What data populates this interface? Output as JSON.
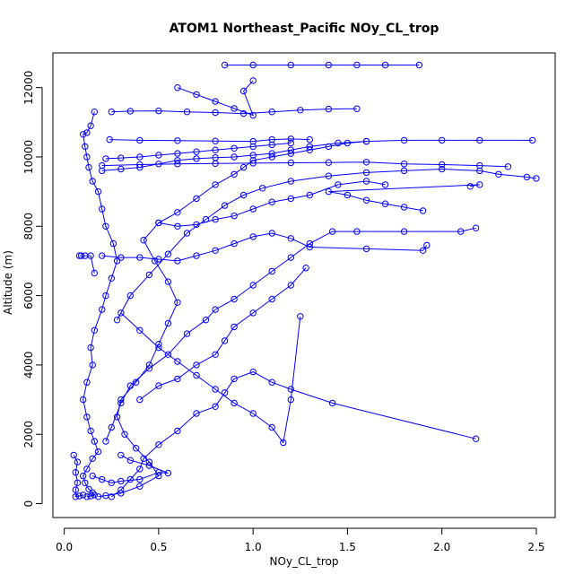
{
  "chart_data": {
    "type": "scatter",
    "title": "ATOM1 Northeast_Pacific NOy_CL_trop",
    "xlabel": "NOy_CL_trop",
    "ylabel": "Altitude (m)",
    "xlim": [
      -0.06,
      2.6
    ],
    "ylim": [
      -400,
      13000
    ],
    "xticks": [
      0.0,
      0.5,
      1.0,
      1.5,
      2.0,
      2.5
    ],
    "xtick_labels": [
      "0.0",
      "0.5",
      "1.0",
      "1.5",
      "2.0",
      "2.5"
    ],
    "yticks": [
      0,
      2000,
      4000,
      6000,
      8000,
      10000,
      12000
    ],
    "ytick_labels": [
      "0",
      "2000",
      "4000",
      "6000",
      "8000",
      "10000",
      "12000"
    ],
    "grid": false,
    "legend": "none",
    "marker": "open-circle",
    "connect_points": true,
    "color": "#0000ff",
    "series": [
      {
        "values_xy": [
          [
            0.12,
            200
          ],
          [
            0.14,
            220
          ],
          [
            0.16,
            250
          ],
          [
            0.15,
            320
          ],
          [
            0.13,
            420
          ],
          [
            0.11,
            600
          ],
          [
            0.1,
            800
          ],
          [
            0.12,
            1000
          ],
          [
            0.15,
            1300
          ],
          [
            0.18,
            1500
          ],
          [
            0.16,
            1800
          ],
          [
            0.14,
            2100
          ],
          [
            0.12,
            2500
          ],
          [
            0.1,
            3000
          ],
          [
            0.12,
            3500
          ],
          [
            0.15,
            4000
          ],
          [
            0.14,
            4500
          ],
          [
            0.16,
            5000
          ],
          [
            0.2,
            5600
          ],
          [
            0.22,
            6000
          ],
          [
            0.25,
            6500
          ],
          [
            0.28,
            7000
          ],
          [
            0.26,
            7500
          ],
          [
            0.22,
            8000
          ],
          [
            0.2,
            8500
          ],
          [
            0.18,
            9000
          ],
          [
            0.15,
            9300
          ],
          [
            0.13,
            9700
          ],
          [
            0.12,
            10000
          ],
          [
            0.11,
            10300
          ],
          [
            0.1,
            10650
          ],
          [
            0.12,
            10700
          ],
          [
            0.14,
            10900
          ],
          [
            0.16,
            11300
          ]
        ]
      },
      {
        "values_xy": [
          [
            0.18,
            200
          ],
          [
            0.22,
            230
          ],
          [
            0.3,
            300
          ],
          [
            0.4,
            500
          ],
          [
            0.5,
            800
          ],
          [
            0.45,
            1200
          ],
          [
            0.38,
            1600
          ],
          [
            0.32,
            2000
          ],
          [
            0.28,
            2500
          ],
          [
            0.3,
            3000
          ],
          [
            0.38,
            3500
          ],
          [
            0.45,
            4000
          ],
          [
            0.5,
            4600
          ],
          [
            0.55,
            5200
          ],
          [
            0.6,
            5800
          ],
          [
            0.55,
            6400
          ],
          [
            0.48,
            7000
          ],
          [
            0.42,
            7600
          ],
          [
            0.5,
            8100
          ],
          [
            0.6,
            8400
          ],
          [
            0.7,
            8800
          ],
          [
            0.8,
            9200
          ],
          [
            0.9,
            9500
          ],
          [
            0.95,
            9700
          ],
          [
            1.0,
            9900
          ],
          [
            1.1,
            10000
          ],
          [
            1.2,
            10100
          ],
          [
            1.3,
            10200
          ],
          [
            1.4,
            10300
          ],
          [
            1.5,
            10400
          ],
          [
            1.6,
            10450
          ],
          [
            1.8,
            10480
          ],
          [
            2.0,
            10480
          ],
          [
            2.2,
            10480
          ],
          [
            2.48,
            10480
          ]
        ]
      },
      {
        "values_xy": [
          [
            0.25,
            200
          ],
          [
            0.3,
            400
          ],
          [
            0.35,
            700
          ],
          [
            0.4,
            1000
          ],
          [
            0.42,
            1300
          ],
          [
            0.5,
            1700
          ],
          [
            0.6,
            2100
          ],
          [
            0.7,
            2600
          ],
          [
            0.8,
            2800
          ],
          [
            0.85,
            3200
          ],
          [
            0.9,
            3600
          ],
          [
            1.0,
            3800
          ],
          [
            1.1,
            3500
          ],
          [
            1.2,
            3300
          ],
          [
            1.42,
            2900
          ],
          [
            2.18,
            1870
          ]
        ]
      },
      {
        "values_xy": [
          [
            0.22,
            1800
          ],
          [
            0.25,
            2200
          ],
          [
            0.3,
            2900
          ],
          [
            0.35,
            3400
          ],
          [
            0.45,
            3900
          ],
          [
            0.55,
            4300
          ],
          [
            0.65,
            4900
          ],
          [
            0.75,
            5300
          ],
          [
            0.8,
            5600
          ],
          [
            0.9,
            5900
          ],
          [
            1.0,
            6300
          ],
          [
            1.1,
            6700
          ],
          [
            1.2,
            7100
          ],
          [
            1.3,
            7500
          ],
          [
            1.42,
            7850
          ],
          [
            1.55,
            7850
          ],
          [
            1.8,
            7850
          ],
          [
            2.1,
            7850
          ],
          [
            2.18,
            7950
          ]
        ]
      },
      {
        "values_xy": [
          [
            0.28,
            5300
          ],
          [
            0.35,
            6000
          ],
          [
            0.45,
            6600
          ],
          [
            0.55,
            7200
          ],
          [
            0.65,
            7800
          ],
          [
            0.75,
            8200
          ],
          [
            0.85,
            8600
          ],
          [
            0.95,
            8900
          ],
          [
            1.05,
            9100
          ],
          [
            1.2,
            9300
          ],
          [
            1.4,
            9450
          ],
          [
            1.6,
            9550
          ],
          [
            1.8,
            9600
          ],
          [
            2.0,
            9650
          ],
          [
            2.2,
            9600
          ],
          [
            2.3,
            9500
          ],
          [
            2.45,
            9420
          ],
          [
            2.5,
            9380
          ]
        ]
      },
      {
        "values_xy": [
          [
            0.2,
            7150
          ],
          [
            0.3,
            7100
          ],
          [
            0.4,
            7100
          ],
          [
            0.5,
            7050
          ],
          [
            0.6,
            7000
          ],
          [
            0.7,
            7150
          ],
          [
            0.8,
            7300
          ],
          [
            0.9,
            7500
          ],
          [
            1.0,
            7700
          ],
          [
            1.1,
            7800
          ],
          [
            1.2,
            7650
          ],
          [
            1.3,
            7400
          ],
          [
            1.6,
            7350
          ],
          [
            1.9,
            7300
          ],
          [
            1.92,
            7450
          ]
        ]
      },
      {
        "values_xy": [
          [
            0.3,
            5500
          ],
          [
            0.4,
            5000
          ],
          [
            0.5,
            4500
          ],
          [
            0.6,
            4100
          ],
          [
            0.7,
            3700
          ],
          [
            0.8,
            3300
          ],
          [
            0.9,
            2900
          ],
          [
            1.0,
            2600
          ],
          [
            1.1,
            2200
          ],
          [
            1.16,
            1760
          ],
          [
            1.2,
            3000
          ],
          [
            1.25,
            5400
          ]
        ]
      },
      {
        "values_xy": [
          [
            0.2,
            9600
          ],
          [
            0.3,
            9650
          ],
          [
            0.4,
            9700
          ],
          [
            0.5,
            9800
          ],
          [
            0.6,
            9900
          ],
          [
            0.7,
            9950
          ],
          [
            0.8,
            9980
          ],
          [
            0.9,
            10000
          ],
          [
            1.0,
            10050
          ],
          [
            1.1,
            10100
          ],
          [
            1.2,
            10200
          ],
          [
            1.3,
            10300
          ],
          [
            1.45,
            10400
          ],
          [
            1.6,
            10450
          ]
        ]
      },
      {
        "values_xy": [
          [
            0.22,
            9950
          ],
          [
            0.3,
            9970
          ],
          [
            0.4,
            10000
          ],
          [
            0.5,
            10050
          ],
          [
            0.6,
            10100
          ],
          [
            0.7,
            10150
          ],
          [
            0.8,
            10200
          ],
          [
            0.9,
            10250
          ],
          [
            1.0,
            10300
          ],
          [
            1.1,
            10350
          ],
          [
            1.2,
            10400
          ]
        ]
      },
      {
        "values_xy": [
          [
            0.25,
            11300
          ],
          [
            0.35,
            11320
          ],
          [
            0.5,
            11330
          ],
          [
            0.65,
            11300
          ],
          [
            0.8,
            11280
          ],
          [
            0.95,
            11250
          ],
          [
            1.1,
            11300
          ],
          [
            1.25,
            11350
          ],
          [
            1.4,
            11380
          ],
          [
            1.55,
            11390
          ]
        ]
      },
      {
        "values_xy": [
          [
            0.85,
            12650
          ],
          [
            1.0,
            12650
          ],
          [
            1.2,
            12650
          ],
          [
            1.4,
            12650
          ],
          [
            1.55,
            12650
          ],
          [
            1.7,
            12650
          ],
          [
            1.88,
            12650
          ]
        ]
      },
      {
        "values_xy": [
          [
            0.6,
            12000
          ],
          [
            0.7,
            11800
          ],
          [
            0.8,
            11600
          ],
          [
            0.9,
            11400
          ],
          [
            1.0,
            11200
          ],
          [
            0.95,
            11900
          ],
          [
            1.0,
            12200
          ]
        ]
      },
      {
        "values_xy": [
          [
            0.05,
            1400
          ],
          [
            0.07,
            1200
          ],
          [
            0.06,
            900
          ],
          [
            0.07,
            600
          ],
          [
            0.06,
            400
          ],
          [
            0.06,
            200
          ],
          [
            0.08,
            220
          ],
          [
            0.1,
            250
          ]
        ]
      },
      {
        "values_xy": [
          [
            0.08,
            7150
          ],
          [
            0.09,
            7150
          ],
          [
            0.11,
            7150
          ],
          [
            0.14,
            7150
          ],
          [
            0.16,
            6650
          ]
        ]
      },
      {
        "values_xy": [
          [
            0.15,
            800
          ],
          [
            0.2,
            700
          ],
          [
            0.25,
            600
          ],
          [
            0.3,
            650
          ],
          [
            0.4,
            700
          ],
          [
            0.5,
            900
          ],
          [
            0.55,
            880
          ],
          [
            0.45,
            1100
          ],
          [
            0.35,
            1250
          ],
          [
            0.3,
            1400
          ]
        ]
      },
      {
        "values_xy": [
          [
            0.4,
            3000
          ],
          [
            0.5,
            3400
          ],
          [
            0.6,
            3600
          ],
          [
            0.7,
            4000
          ],
          [
            0.8,
            4300
          ],
          [
            0.85,
            4700
          ],
          [
            0.9,
            5100
          ],
          [
            1.0,
            5500
          ],
          [
            1.1,
            5900
          ],
          [
            1.2,
            6300
          ],
          [
            1.28,
            6800
          ]
        ]
      },
      {
        "values_xy": [
          [
            0.5,
            8100
          ],
          [
            0.6,
            8000
          ],
          [
            0.7,
            8050
          ],
          [
            0.8,
            8200
          ],
          [
            0.9,
            8300
          ],
          [
            1.0,
            8500
          ],
          [
            1.1,
            8700
          ],
          [
            1.2,
            8800
          ],
          [
            1.3,
            8900
          ],
          [
            1.45,
            9200
          ],
          [
            1.6,
            9300
          ],
          [
            1.7,
            9200
          ]
        ]
      },
      {
        "values_xy": [
          [
            0.2,
            9750
          ],
          [
            0.4,
            9780
          ],
          [
            0.6,
            9800
          ],
          [
            0.8,
            9810
          ],
          [
            1.0,
            9820
          ],
          [
            1.2,
            9830
          ],
          [
            1.4,
            9840
          ],
          [
            1.6,
            9850
          ],
          [
            1.8,
            9800
          ],
          [
            2.0,
            9780
          ],
          [
            2.2,
            9750
          ],
          [
            2.35,
            9720
          ]
        ]
      },
      {
        "values_xy": [
          [
            0.24,
            10500
          ],
          [
            0.4,
            10480
          ],
          [
            0.6,
            10470
          ],
          [
            0.8,
            10460
          ],
          [
            1.0,
            10450
          ],
          [
            1.1,
            10500
          ],
          [
            1.2,
            10520
          ],
          [
            1.3,
            10500
          ]
        ]
      },
      {
        "values_xy": [
          [
            1.9,
            8450
          ],
          [
            1.8,
            8550
          ],
          [
            1.7,
            8650
          ],
          [
            1.6,
            8750
          ],
          [
            1.5,
            8900
          ],
          [
            1.4,
            9000
          ],
          [
            2.2,
            9200
          ],
          [
            2.15,
            9150
          ]
        ]
      }
    ]
  }
}
